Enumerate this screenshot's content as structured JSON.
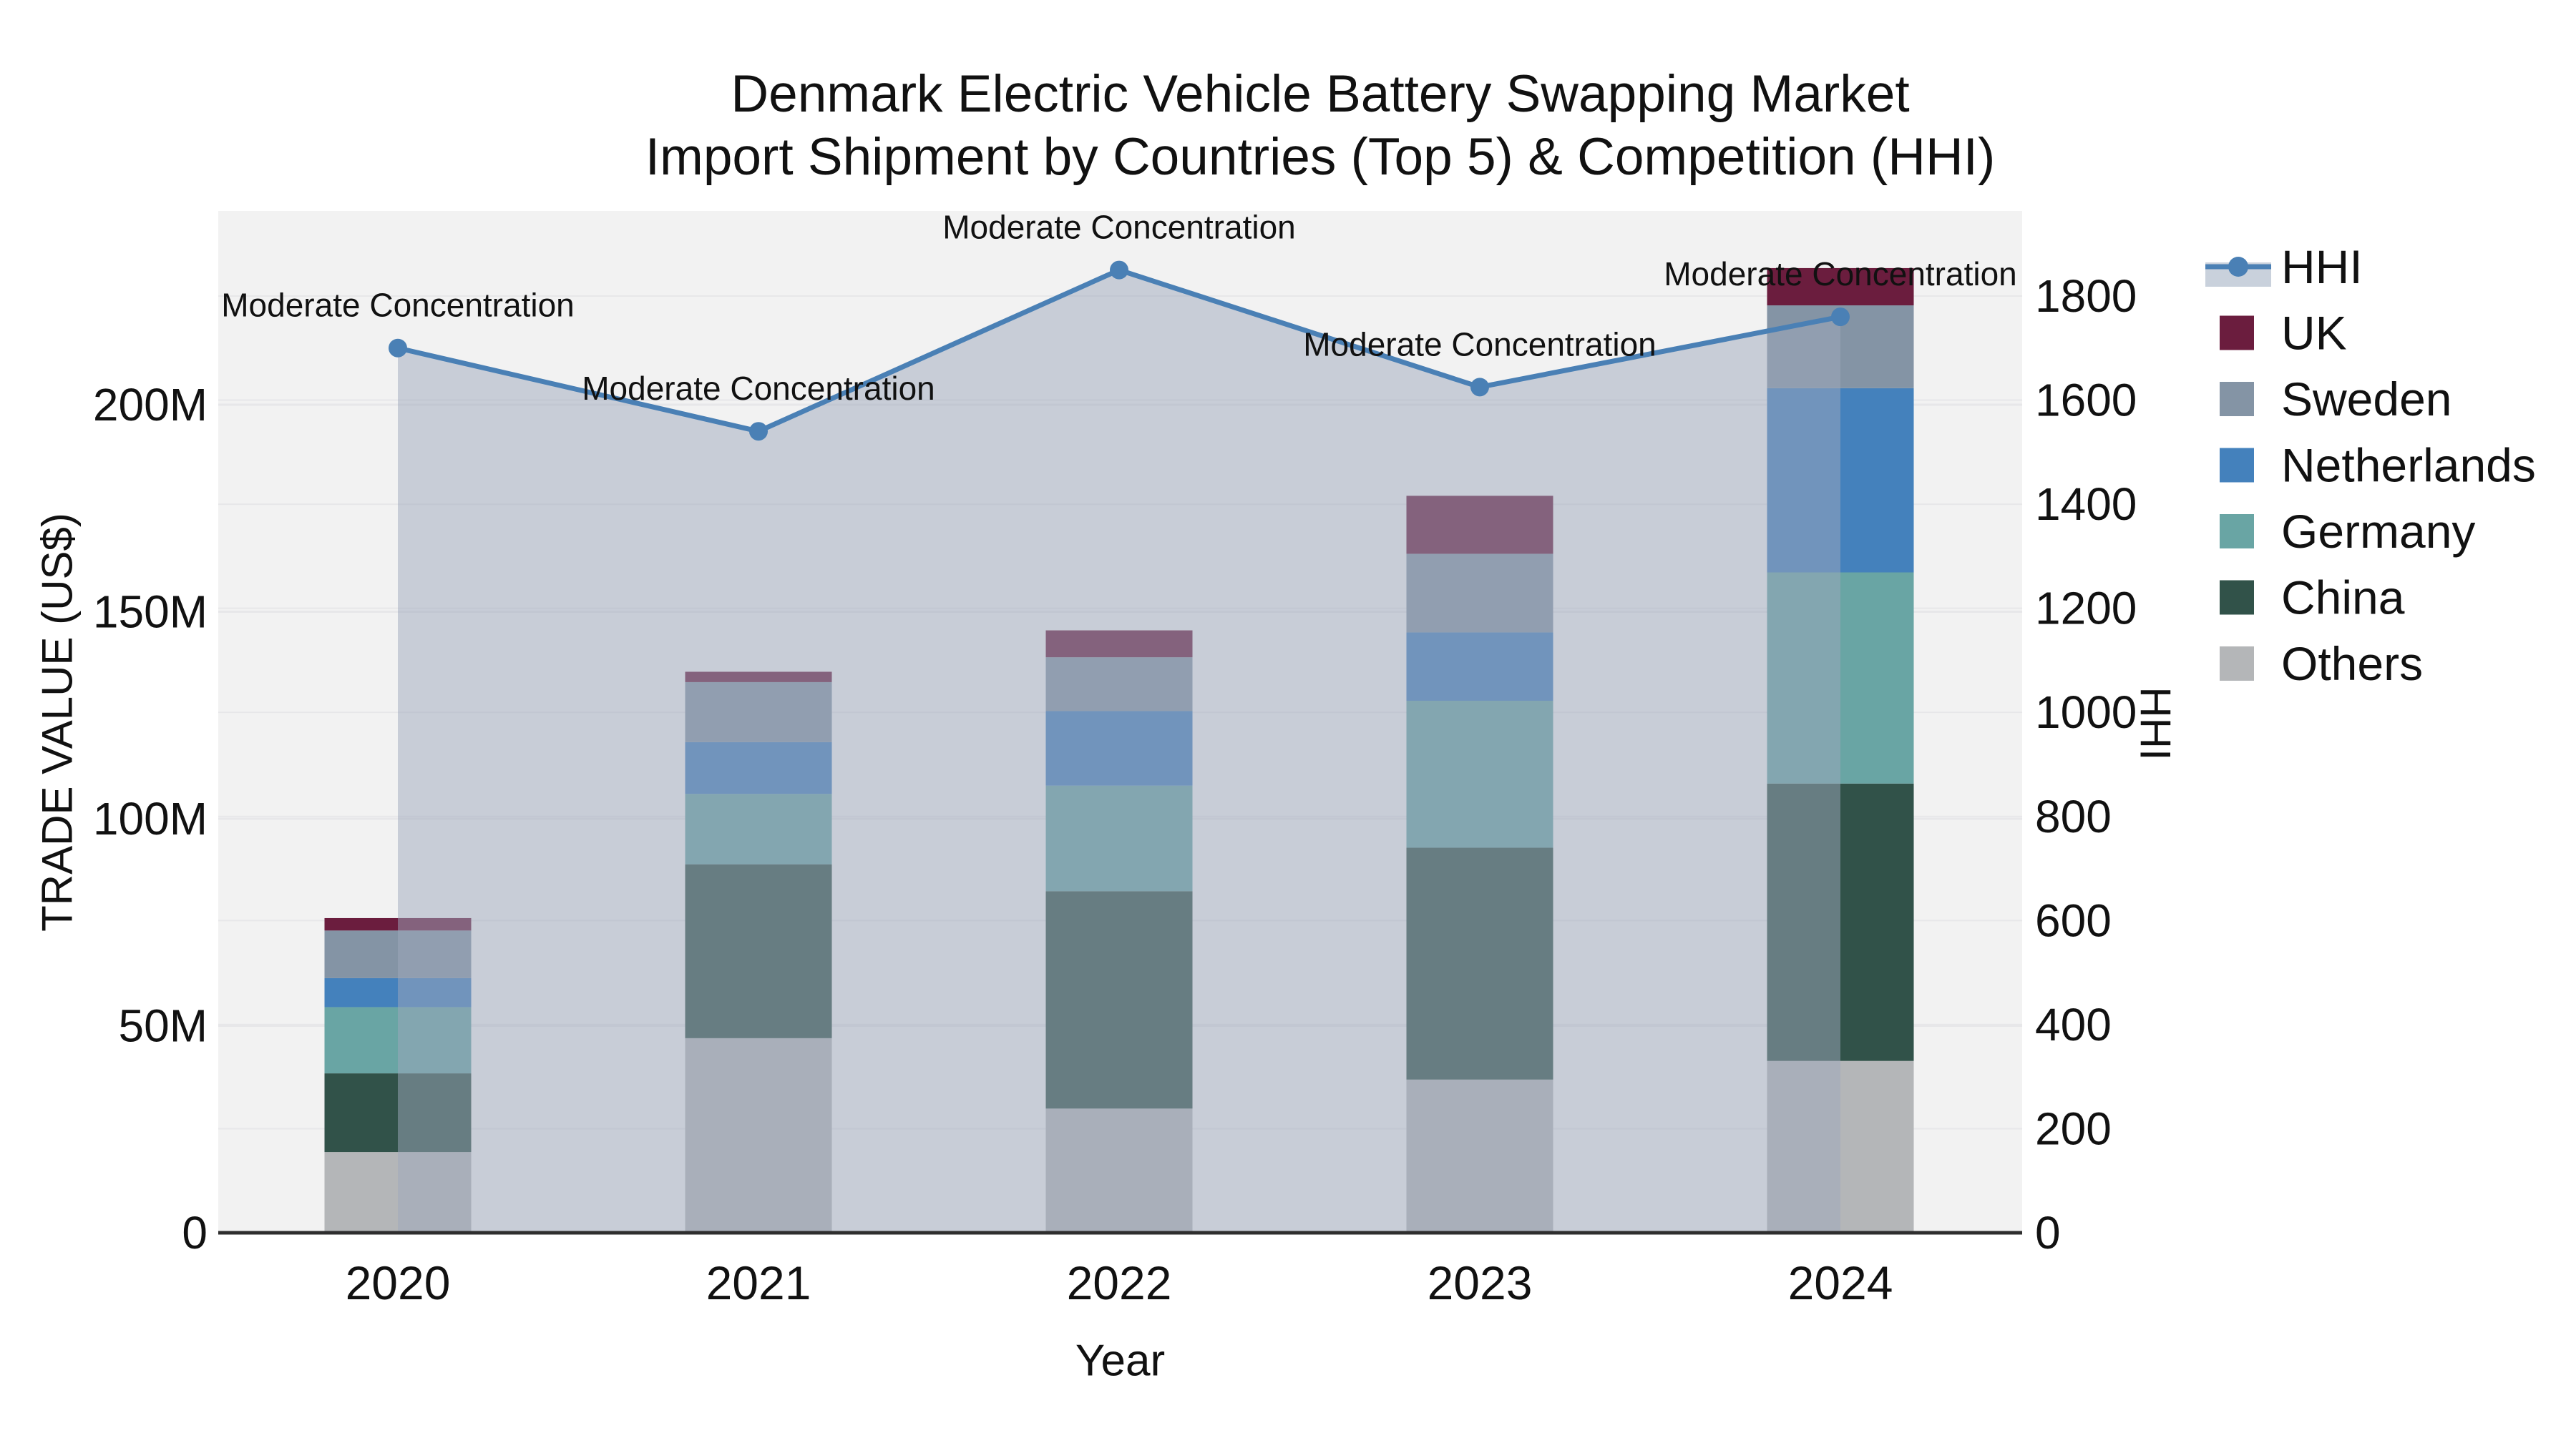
{
  "title": {
    "line1": "Denmark Electric Vehicle Battery Swapping Market",
    "line2": "Import Shipment by Countries (Top 5) & Competition (HHI)"
  },
  "chart_data": {
    "type": "bar",
    "stacked": true,
    "title": "Denmark Electric Vehicle Battery Swapping Market",
    "subtitle": "Import Shipment by Countries (Top 5) & Competition (HHI)",
    "categories": [
      "2020",
      "2021",
      "2022",
      "2023",
      "2024"
    ],
    "value_unit": "million US$",
    "series": [
      {
        "name": "UK",
        "color": "#6b1d3e",
        "values": [
          3.0,
          2.5,
          6.5,
          14.0,
          9.0
        ]
      },
      {
        "name": "Sweden",
        "color": "#8494a5",
        "values": [
          11.5,
          14.5,
          13.0,
          19.0,
          20.0
        ]
      },
      {
        "name": "Netherlands",
        "color": "#4481bc",
        "values": [
          7.0,
          12.5,
          18.0,
          16.5,
          44.5
        ]
      },
      {
        "name": "Germany",
        "color": "#69a5a4",
        "values": [
          16.0,
          17.0,
          25.5,
          35.5,
          51.0
        ]
      },
      {
        "name": "China",
        "color": "#315249",
        "values": [
          19.0,
          42.0,
          52.5,
          56.0,
          67.0
        ]
      },
      {
        "name": "Others",
        "color": "#b4b6b8",
        "values": [
          19.5,
          47.0,
          30.0,
          37.0,
          41.5
        ]
      }
    ],
    "stack_order_bottom_to_top": [
      "Others",
      "China",
      "Germany",
      "Netherlands",
      "Sweden",
      "UK"
    ],
    "line_series": {
      "name": "HHI",
      "color": "#4a80b5",
      "area_fill_color": "rgba(158,168,188,0.5)",
      "values": [
        1700,
        1540,
        1850,
        1625,
        1760
      ]
    },
    "annotations": [
      {
        "year": "2020",
        "text": "Moderate Concentration"
      },
      {
        "year": "2021",
        "text": "Moderate Concentration"
      },
      {
        "year": "2022",
        "text": "Moderate Concentration"
      },
      {
        "year": "2023",
        "text": "Moderate Concentration"
      },
      {
        "year": "2024",
        "text": "Moderate Concentration"
      }
    ],
    "axes": {
      "left": {
        "label": "TRADE VALUE (US$)",
        "ticks": [
          {
            "value": 0,
            "label": "0"
          },
          {
            "value": 50,
            "label": "50M"
          },
          {
            "value": 100,
            "label": "100M"
          },
          {
            "value": 150,
            "label": "150M"
          },
          {
            "value": 200,
            "label": "200M"
          }
        ],
        "range": [
          0,
          247
        ]
      },
      "right": {
        "label": "HHI",
        "tick_values": [
          0,
          200,
          400,
          600,
          800,
          1000,
          1200,
          1400,
          1600,
          1800
        ],
        "range": [
          0,
          1963
        ]
      },
      "x": {
        "label": "Year"
      }
    },
    "legend": {
      "position": "right",
      "items": [
        "HHI",
        "UK",
        "Sweden",
        "Netherlands",
        "Germany",
        "China",
        "Others"
      ]
    },
    "grid": true
  },
  "colors": {
    "page_background": "#ffffff",
    "plot_background": "#f2f2f2",
    "gridline": "#e7e7e9",
    "axis_line": "#2e2e2e",
    "text": "#111111",
    "hhi_legend_band": "#c9d1dc"
  }
}
